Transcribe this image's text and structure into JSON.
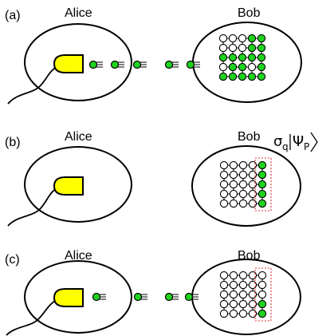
{
  "colors": {
    "node_on": "#1fd31f",
    "node_off": "#ffffff",
    "source": "#ffff00",
    "stroke": "#000000",
    "box": "#e0303a"
  },
  "panels": [
    {
      "tag": "(a)",
      "alice": "Alice",
      "bob": "Bob",
      "photons_in_flight": 5,
      "lattice": [
        [
          0,
          0,
          0,
          1,
          1
        ],
        [
          0,
          0,
          0,
          1,
          1
        ],
        [
          1,
          1,
          1,
          1,
          1
        ],
        [
          0,
          1,
          1,
          0,
          1
        ],
        [
          1,
          1,
          1,
          1,
          1
        ]
      ],
      "dotted_box": false
    },
    {
      "tag": "(b)",
      "alice": "Alice",
      "bob": "Bob",
      "state_sigma": "σ",
      "state_q": "q",
      "state_psi": "Ψ",
      "state_p": "P",
      "photons_in_flight": 0,
      "lattice": [
        [
          0,
          0,
          0,
          0,
          1
        ],
        [
          0,
          0,
          0,
          0,
          1
        ],
        [
          0,
          0,
          0,
          0,
          1
        ],
        [
          0,
          0,
          0,
          0,
          1
        ],
        [
          0,
          0,
          0,
          0,
          1
        ]
      ],
      "dotted_box": true
    },
    {
      "tag": "(c)",
      "alice": "Alice",
      "bob": "Bob",
      "photons_in_flight": 4,
      "lattice": [
        [
          0,
          0,
          0,
          0,
          0
        ],
        [
          0,
          0,
          0,
          0,
          0
        ],
        [
          0,
          0,
          0,
          0,
          0
        ],
        [
          0,
          0,
          0,
          0,
          1
        ],
        [
          0,
          0,
          0,
          0,
          1
        ]
      ],
      "dotted_box": true
    }
  ]
}
